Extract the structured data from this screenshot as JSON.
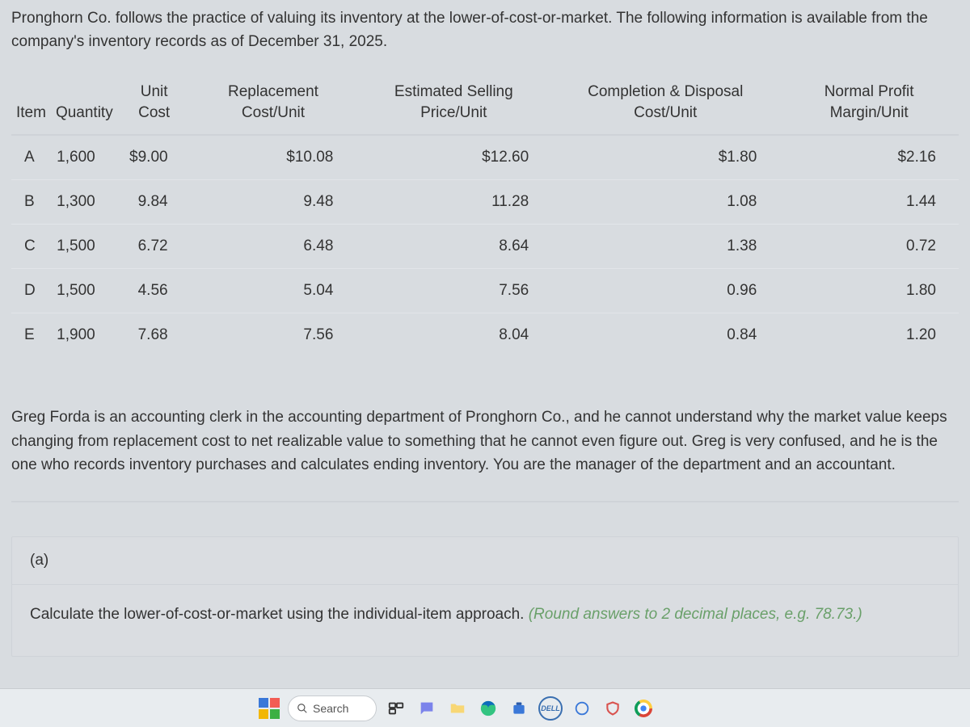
{
  "intro": "Pronghorn Co. follows the practice of valuing its inventory at the lower-of-cost-or-market. The following information is available from the company's inventory records as of December 31, 2025.",
  "table": {
    "columns": [
      "Item",
      "Quantity",
      "Unit Cost",
      "Replacement Cost/Unit",
      "Estimated Selling Price/Unit",
      "Completion & Disposal Cost/Unit",
      "Normal Profit Margin/Unit"
    ],
    "rows": [
      {
        "item": "A",
        "qty": "1,600",
        "unit_cost": "$9.00",
        "replacement": "$10.08",
        "selling": "$12.60",
        "disposal": "$1.80",
        "profit": "$2.16"
      },
      {
        "item": "B",
        "qty": "1,300",
        "unit_cost": "9.84",
        "replacement": "9.48",
        "selling": "11.28",
        "disposal": "1.08",
        "profit": "1.44"
      },
      {
        "item": "C",
        "qty": "1,500",
        "unit_cost": "6.72",
        "replacement": "6.48",
        "selling": "8.64",
        "disposal": "1.38",
        "profit": "0.72"
      },
      {
        "item": "D",
        "qty": "1,500",
        "unit_cost": "4.56",
        "replacement": "5.04",
        "selling": "7.56",
        "disposal": "0.96",
        "profit": "1.80"
      },
      {
        "item": "E",
        "qty": "1,900",
        "unit_cost": "7.68",
        "replacement": "7.56",
        "selling": "8.04",
        "disposal": "0.84",
        "profit": "1.20"
      }
    ]
  },
  "paragraph2": "Greg Forda is an accounting clerk in the accounting department of Pronghorn Co., and he cannot understand why the market value keeps changing from replacement cost to net realizable value to something that he cannot even figure out. Greg is very confused, and he is the one who records inventory purchases and calculates ending inventory. You are the manager of the department and an accountant.",
  "section": {
    "label": "(a)",
    "body_prefix": "Calculate the lower-of-cost-or-market using the individual-item approach. ",
    "hint": "(Round answers to 2 decimal places, e.g. 78.73.)"
  },
  "taskbar": {
    "search_placeholder": "Search",
    "dell": "DELL"
  }
}
